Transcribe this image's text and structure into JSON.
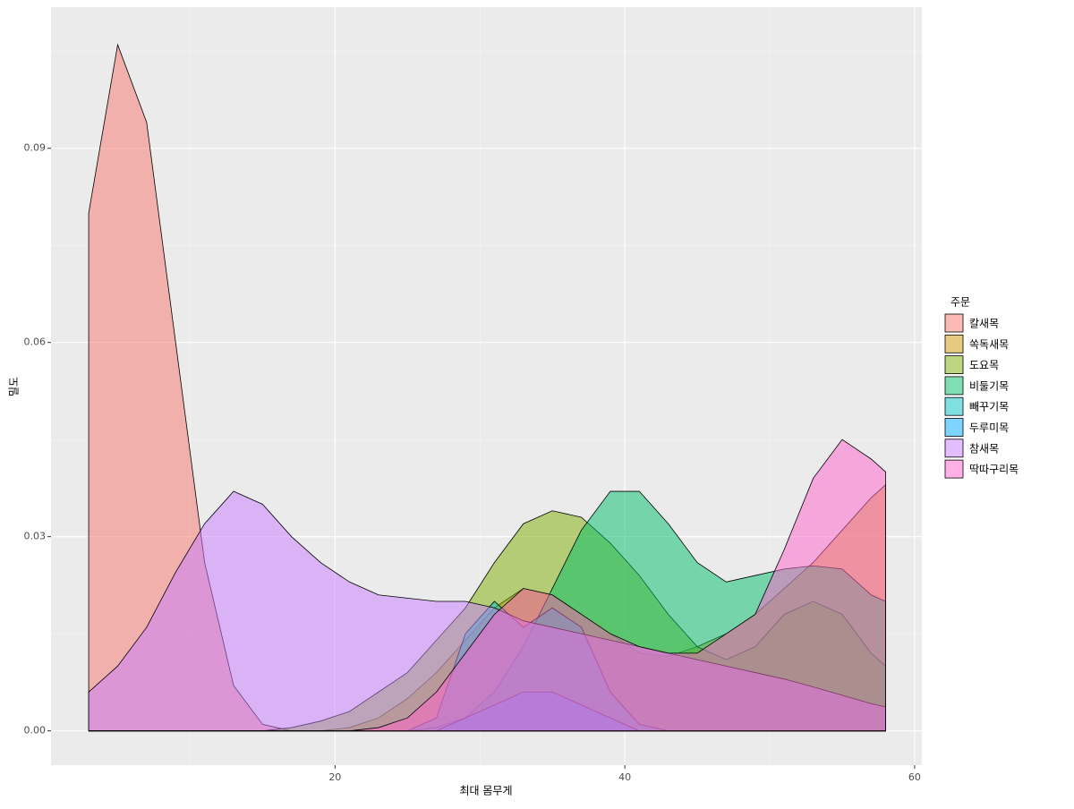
{
  "chart_data": {
    "type": "density",
    "x_label": "최대 몸무게",
    "y_label": "밀도",
    "legend_title": "주문",
    "x": [
      3,
      5,
      7,
      9,
      11,
      13,
      15,
      17,
      19,
      21,
      23,
      25,
      27,
      29,
      31,
      33,
      35,
      37,
      39,
      41,
      43,
      45,
      47,
      49,
      51,
      53,
      55,
      57,
      58
    ],
    "series": [
      {
        "name": "칼새목",
        "color": "#F8766D",
        "values": [
          0.08,
          0.106,
          0.094,
          0.06,
          0.026,
          0.007,
          0.001,
          0,
          0,
          0,
          0,
          0,
          0,
          0,
          0,
          0,
          0,
          0,
          0,
          0,
          0,
          0,
          0,
          0,
          0,
          0,
          0,
          0,
          0
        ]
      },
      {
        "name": "쏙독새목",
        "color": "#CD9600",
        "values": [
          0,
          0,
          0,
          0,
          0,
          0,
          0,
          0,
          0,
          0.0005,
          0.002,
          0.005,
          0.009,
          0.014,
          0.019,
          0.022,
          0.021,
          0.018,
          0.015,
          0.012,
          0.0115,
          0.013,
          0.015,
          0.018,
          0.022,
          0.026,
          0.031,
          0.036,
          0.038
        ]
      },
      {
        "name": "도요목",
        "color": "#7CAE00",
        "values": [
          0,
          0,
          0,
          0,
          0,
          0,
          0,
          0.0005,
          0.0015,
          0.003,
          0.006,
          0.009,
          0.014,
          0.019,
          0.026,
          0.032,
          0.034,
          0.033,
          0.029,
          0.024,
          0.018,
          0.013,
          0.011,
          0.013,
          0.018,
          0.02,
          0.018,
          0.012,
          0.01
        ]
      },
      {
        "name": "비둘기목",
        "color": "#00BE67",
        "values": [
          0,
          0,
          0,
          0,
          0,
          0,
          0,
          0,
          0,
          0,
          0,
          0,
          0.0005,
          0.002,
          0.006,
          0.013,
          0.022,
          0.031,
          0.037,
          0.037,
          0.032,
          0.026,
          0.023,
          0.024,
          0.025,
          0.0255,
          0.025,
          0.021,
          0.02
        ]
      },
      {
        "name": "빼꾸기목",
        "color": "#00BFC4",
        "values": [
          0,
          0,
          0,
          0,
          0,
          0,
          0,
          0,
          0,
          0,
          0,
          0,
          0.002,
          0.015,
          0.02,
          0.016,
          0.019,
          0.016,
          0.006,
          0.001,
          0,
          0,
          0,
          0,
          0,
          0,
          0,
          0,
          0
        ]
      },
      {
        "name": "두루미목",
        "color": "#00A9FF",
        "values": [
          0,
          0,
          0,
          0,
          0,
          0,
          0,
          0,
          0,
          0,
          0,
          0,
          0,
          0.002,
          0.004,
          0.006,
          0.006,
          0.004,
          0.002,
          0,
          0,
          0,
          0,
          0,
          0,
          0,
          0,
          0,
          0
        ]
      },
      {
        "name": "참새목",
        "color": "#C77CFF",
        "values": [
          0.006,
          0.01,
          0.016,
          0.0245,
          0.032,
          0.037,
          0.035,
          0.03,
          0.026,
          0.023,
          0.021,
          0.0205,
          0.02,
          0.02,
          0.019,
          0.017,
          0.016,
          0.015,
          0.014,
          0.013,
          0.012,
          0.011,
          0.01,
          0.009,
          0.008,
          0.0068,
          0.0055,
          0.0042,
          0.0037
        ]
      },
      {
        "name": "딱따구리목",
        "color": "#FF61CC",
        "values": [
          0,
          0,
          0,
          0,
          0,
          0,
          0,
          0,
          0,
          0,
          0.0005,
          0.002,
          0.006,
          0.012,
          0.018,
          0.022,
          0.021,
          0.018,
          0.015,
          0.013,
          0.012,
          0.012,
          0.015,
          0.018,
          0.028,
          0.039,
          0.045,
          0.042,
          0.04
        ]
      }
    ],
    "xlim": [
      0.4,
      60.5
    ],
    "ylim": [
      -0.0053,
      0.1118
    ],
    "xticks": [
      20,
      40,
      60
    ],
    "yticks": [
      {
        "value": 0,
        "label": "0.00"
      },
      0.03,
      0.06,
      0.09
    ],
    "x_minor_ticks": [
      10,
      30,
      50
    ],
    "y_minor_ticks": [
      0.015,
      0.045,
      0.075,
      0.105
    ],
    "fill_opacity": 0.5,
    "grid": true
  }
}
